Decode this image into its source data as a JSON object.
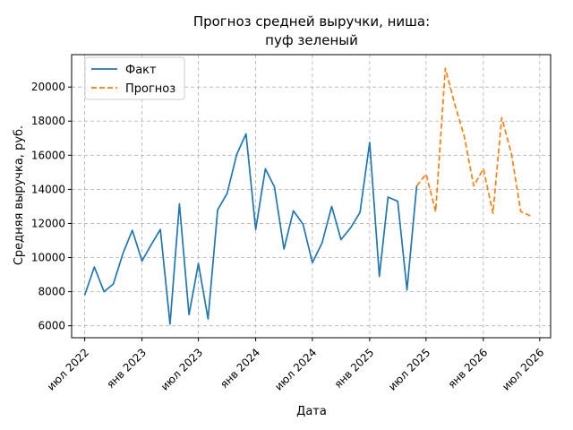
{
  "chart_data": {
    "type": "line",
    "title": "Прогноз средней выручки, ниша:",
    "subtitle": "пуф зеленый",
    "xlabel": "Дата",
    "ylabel": "Средняя выручка, руб.",
    "xlim": [
      "2022-05-20",
      "2026-08-05"
    ],
    "ylim": [
      5300,
      21900
    ],
    "grid": true,
    "legend": "top-left",
    "x_ticks": [
      {
        "date": "2022-07-01",
        "label": "июл 2022"
      },
      {
        "date": "2023-01-01",
        "label": "янв 2023"
      },
      {
        "date": "2023-07-01",
        "label": "июл 2023"
      },
      {
        "date": "2024-01-01",
        "label": "янв 2024"
      },
      {
        "date": "2024-07-01",
        "label": "июл 2024"
      },
      {
        "date": "2025-01-01",
        "label": "янв 2025"
      },
      {
        "date": "2025-07-01",
        "label": "июл 2025"
      },
      {
        "date": "2026-01-01",
        "label": "янв 2026"
      },
      {
        "date": "2026-07-01",
        "label": "июл 2026"
      }
    ],
    "y_ticks": [
      6000,
      8000,
      10000,
      12000,
      14000,
      16000,
      18000,
      20000
    ],
    "series": [
      {
        "name": "Факт",
        "color": "#1f77b4",
        "style": "solid",
        "x": [
          "2022-07-01",
          "2022-08-01",
          "2022-09-01",
          "2022-10-01",
          "2022-11-01",
          "2022-12-01",
          "2023-01-01",
          "2023-02-01",
          "2023-03-01",
          "2023-04-01",
          "2023-05-01",
          "2023-06-01",
          "2023-07-01",
          "2023-08-01",
          "2023-09-01",
          "2023-10-01",
          "2023-11-01",
          "2023-12-01",
          "2024-01-01",
          "2024-02-01",
          "2024-03-01",
          "2024-04-01",
          "2024-05-01",
          "2024-06-01",
          "2024-07-01",
          "2024-08-01",
          "2024-09-01",
          "2024-10-01",
          "2024-11-01",
          "2024-12-01",
          "2025-01-01",
          "2025-02-01",
          "2025-03-01",
          "2025-04-01",
          "2025-05-01",
          "2025-06-01"
        ],
        "y": [
          7800,
          9450,
          8000,
          8450,
          10250,
          11600,
          9800,
          10800,
          11650,
          6100,
          13150,
          6650,
          9650,
          6400,
          12800,
          13750,
          16050,
          17250,
          11650,
          15200,
          14150,
          10500,
          12750,
          11950,
          9700,
          10850,
          13000,
          11050,
          11750,
          12650,
          16750,
          8900,
          13550,
          13300,
          8100,
          14200
        ]
      },
      {
        "name": "Прогноз",
        "color": "#ff7f0e",
        "style": "dashed",
        "x": [
          "2025-06-01",
          "2025-07-01",
          "2025-08-01",
          "2025-09-01",
          "2025-10-01",
          "2025-11-01",
          "2025-12-01",
          "2026-01-01",
          "2026-02-01",
          "2026-03-01",
          "2026-04-01",
          "2026-05-01",
          "2026-06-01"
        ],
        "y": [
          14200,
          14900,
          12700,
          21100,
          19000,
          17100,
          14200,
          15200,
          12600,
          18200,
          16100,
          12700,
          12450
        ]
      }
    ]
  }
}
